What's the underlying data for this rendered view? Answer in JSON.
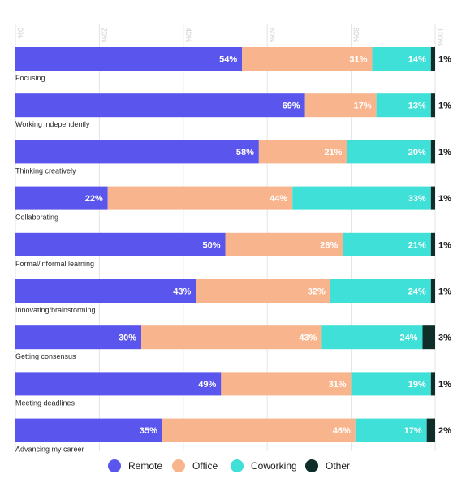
{
  "chart_data": {
    "type": "bar",
    "orientation": "horizontal",
    "stacked": true,
    "x_ticks": [
      "0%",
      "20%",
      "40%",
      "60%",
      "80%",
      "100%"
    ],
    "xlim": [
      0,
      100
    ],
    "grid": true,
    "legend_position": "bottom",
    "categories": [
      "Focusing",
      "Working independently",
      "Thinking creatively",
      "Collaborating",
      "Formal/informal learning",
      "Innovating/brainstorming",
      "Getting consensus",
      "Meeting deadlines",
      "Advancing my career"
    ],
    "series": [
      {
        "name": "Remote",
        "color": "#5a55ec",
        "values": [
          54,
          69,
          58,
          22,
          50,
          43,
          30,
          49,
          35
        ]
      },
      {
        "name": "Office",
        "color": "#f8b48c",
        "values": [
          31,
          17,
          21,
          44,
          28,
          32,
          43,
          31,
          46
        ]
      },
      {
        "name": "Coworking",
        "color": "#3ee0d8",
        "values": [
          14,
          13,
          20,
          33,
          21,
          24,
          24,
          19,
          17
        ]
      },
      {
        "name": "Other",
        "color": "#0f2e2a",
        "values": [
          1,
          1,
          1,
          1,
          1,
          1,
          3,
          1,
          2
        ]
      }
    ],
    "value_suffix": "%"
  }
}
